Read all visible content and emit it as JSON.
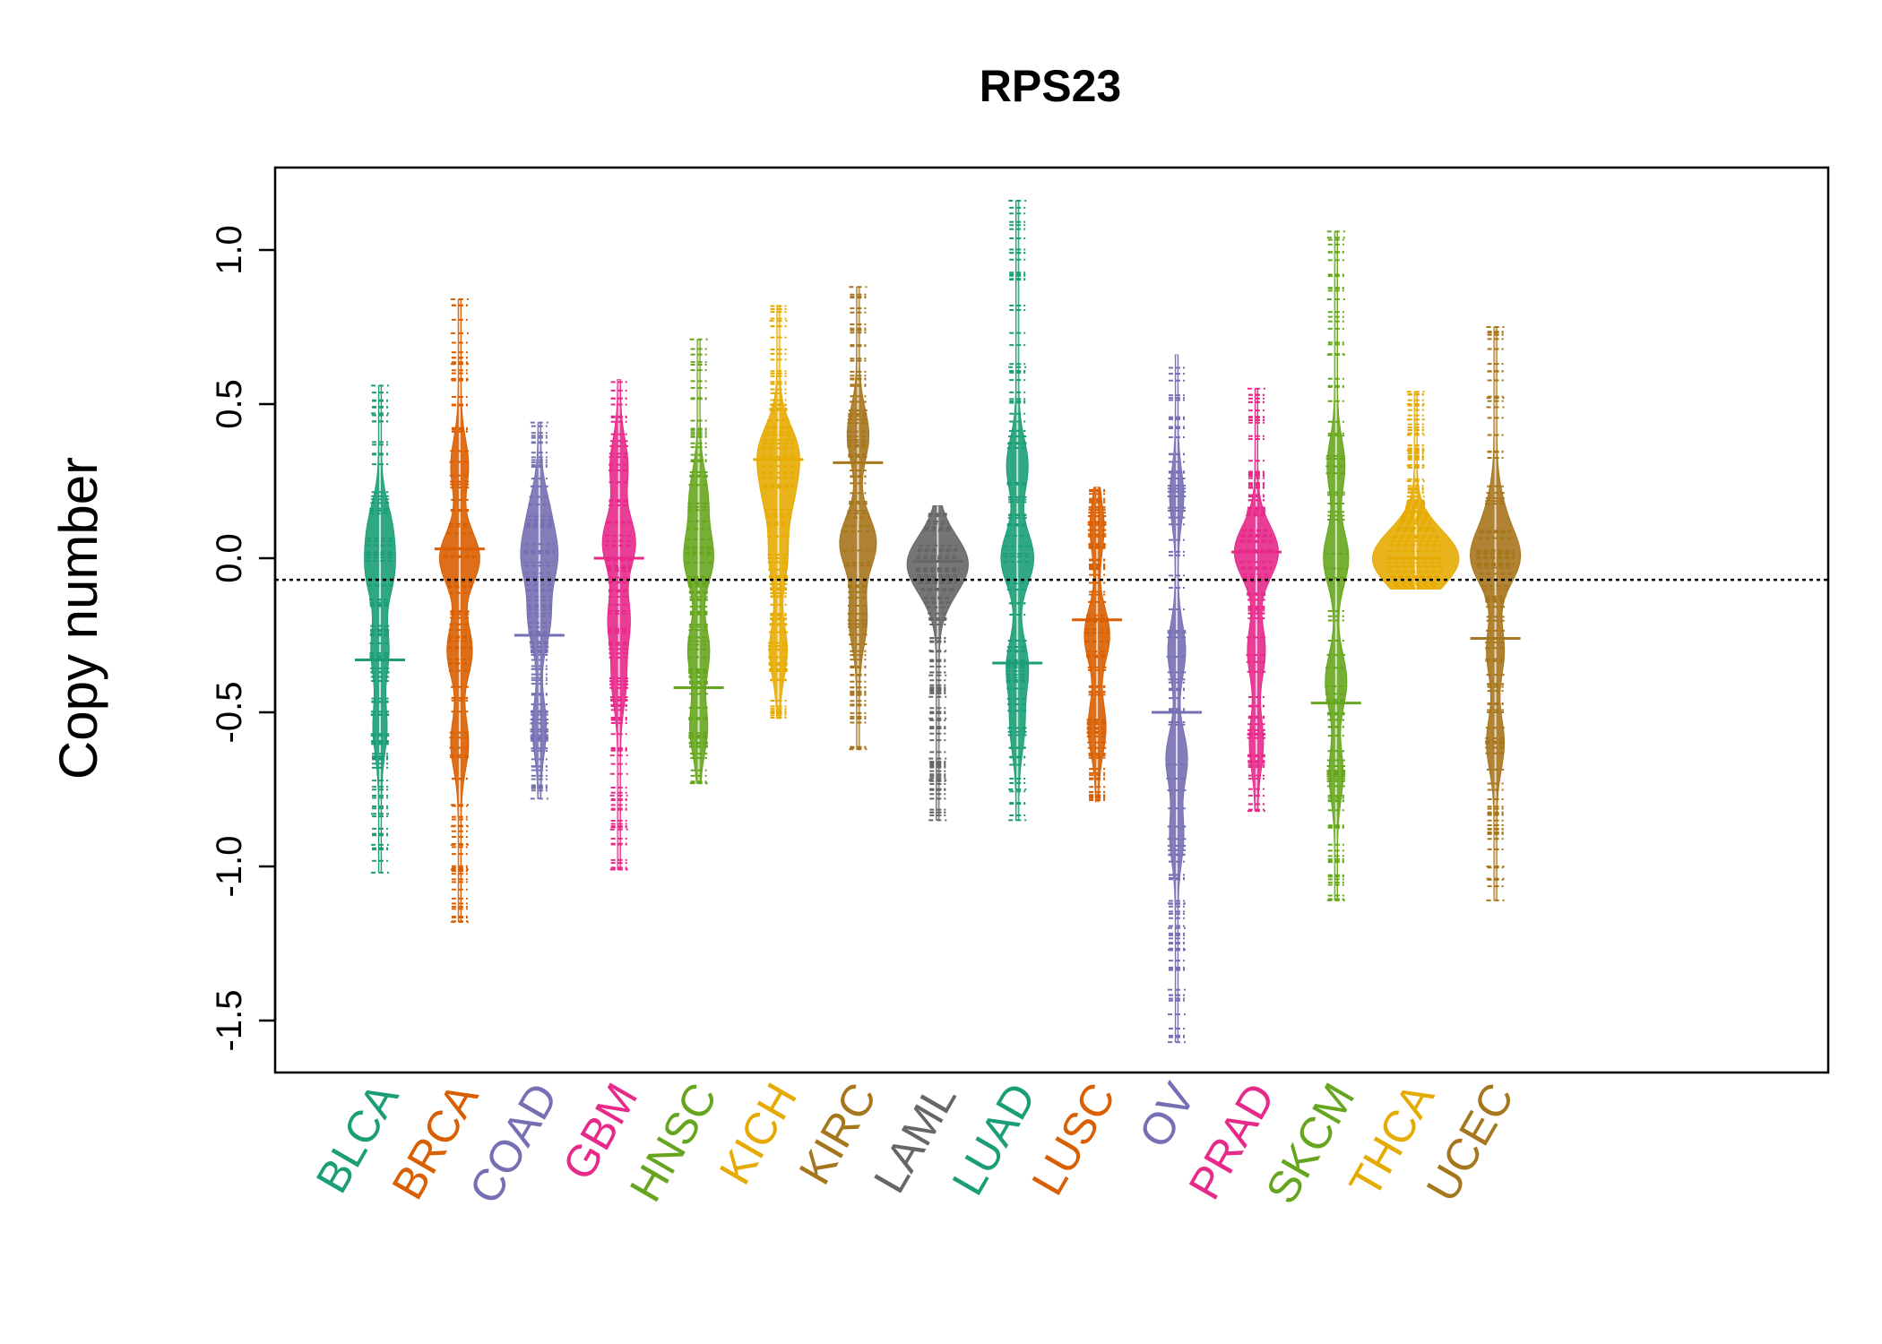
{
  "chart_data": {
    "type": "beanplot",
    "title": "RPS23",
    "xlabel": "",
    "ylabel": "Copy number",
    "ylim": [
      -1.68,
      1.26
    ],
    "yticks": [
      1.0,
      0.5,
      0.0,
      -0.5,
      -1.0,
      -1.5
    ],
    "ytick_labels": [
      "1.0",
      "0.5",
      "0.0",
      "-0.5",
      "-1.0",
      "-1.5"
    ],
    "reference_line": {
      "y": -0.07,
      "style": "dotted",
      "color": "#000000"
    },
    "grid": false,
    "legend": "none",
    "series": [
      {
        "name": "BLCA",
        "color": "#1B9E77",
        "min": -1.02,
        "max": 0.56,
        "median": -0.33,
        "outliers": [
          0.56,
          0.47,
          -0.83,
          -0.93,
          -1.02
        ],
        "bulges": [
          [
            0.1,
            0.5
          ],
          [
            -0.05,
            0.6
          ],
          [
            -0.3,
            0.4
          ],
          [
            -0.55,
            0.3
          ]
        ]
      },
      {
        "name": "BRCA",
        "color": "#D95F02",
        "min": -1.18,
        "max": 0.84,
        "median": 0.03,
        "outliers": [
          0.84,
          0.73,
          0.63,
          0.58,
          -0.8,
          -0.87,
          -0.93,
          -1.01,
          -1.18
        ],
        "bulges": [
          [
            0.3,
            0.4
          ],
          [
            0.0,
            1.0
          ],
          [
            -0.3,
            0.6
          ],
          [
            -0.6,
            0.4
          ]
        ]
      },
      {
        "name": "COAD",
        "color": "#7570B3",
        "min": -0.78,
        "max": 0.44,
        "median": -0.25,
        "outliers": [
          0.44,
          -0.78
        ],
        "bulges": [
          [
            0.15,
            0.4
          ],
          [
            0.0,
            0.8
          ],
          [
            -0.2,
            0.5
          ],
          [
            -0.55,
            0.3
          ]
        ]
      },
      {
        "name": "GBM",
        "color": "#E7298A",
        "min": -1.01,
        "max": 0.58,
        "median": 0.0,
        "outliers": [
          -0.64,
          -0.7,
          -0.77,
          -0.88,
          -1.01
        ],
        "bulges": [
          [
            0.3,
            0.4
          ],
          [
            0.05,
            0.8
          ],
          [
            -0.2,
            0.5
          ],
          [
            -0.4,
            0.3
          ]
        ]
      },
      {
        "name": "HNSC",
        "color": "#66A61E",
        "min": -0.73,
        "max": 0.71,
        "median": -0.42,
        "outliers": [
          0.71,
          -0.73
        ],
        "bulges": [
          [
            0.2,
            0.4
          ],
          [
            0.0,
            0.7
          ],
          [
            -0.3,
            0.5
          ],
          [
            -0.55,
            0.4
          ]
        ]
      },
      {
        "name": "KICH",
        "color": "#E6AB02",
        "min": -0.52,
        "max": 0.82,
        "median": 0.32,
        "outliers": [
          0.77
        ],
        "bulges": [
          [
            0.35,
            0.9
          ],
          [
            0.2,
            0.6
          ],
          [
            0.0,
            0.4
          ],
          [
            -0.3,
            0.4
          ]
        ]
      },
      {
        "name": "KIRC",
        "color": "#A6761D",
        "min": -0.62,
        "max": 0.88,
        "median": 0.31,
        "outliers": [
          0.88,
          -0.62
        ],
        "bulges": [
          [
            0.4,
            0.5
          ],
          [
            0.05,
            0.9
          ],
          [
            -0.2,
            0.4
          ]
        ]
      },
      {
        "name": "LAML",
        "color": "#666666",
        "min": -0.85,
        "max": 0.17,
        "median": -0.01,
        "outliers": [
          -0.3,
          -0.38,
          -0.45,
          -0.52,
          -0.65,
          -0.72,
          -0.85
        ],
        "bulges": [
          [
            0.0,
            1.2
          ],
          [
            -0.08,
            0.5
          ]
        ]
      },
      {
        "name": "LUAD",
        "color": "#1B9E77",
        "min": -0.85,
        "max": 1.16,
        "median": -0.34,
        "outliers": [
          1.16,
          0.62,
          -0.75,
          -0.85
        ],
        "bulges": [
          [
            0.3,
            0.5
          ],
          [
            0.0,
            0.8
          ],
          [
            -0.35,
            0.5
          ],
          [
            -0.55,
            0.3
          ]
        ]
      },
      {
        "name": "LUSC",
        "color": "#D95F02",
        "min": -0.79,
        "max": 0.23,
        "median": -0.2,
        "outliers": [],
        "bulges": [
          [
            0.1,
            0.3
          ],
          [
            -0.25,
            0.6
          ],
          [
            -0.55,
            0.4
          ]
        ]
      },
      {
        "name": "OV",
        "color": "#7570B3",
        "min": -1.57,
        "max": 0.66,
        "median": -0.5,
        "outliers": [
          -1.12,
          -1.2,
          -1.27,
          -1.4,
          -1.48,
          -1.57
        ],
        "bulges": [
          [
            0.2,
            0.3
          ],
          [
            -0.3,
            0.4
          ],
          [
            -0.65,
            0.5
          ],
          [
            -0.9,
            0.3
          ]
        ]
      },
      {
        "name": "PRAD",
        "color": "#E7298A",
        "min": -0.82,
        "max": 0.55,
        "median": 0.02,
        "outliers": [
          0.55,
          -0.82
        ],
        "bulges": [
          [
            0.02,
            1.1
          ],
          [
            -0.3,
            0.4
          ],
          [
            -0.6,
            0.3
          ]
        ]
      },
      {
        "name": "SKCM",
        "color": "#66A61E",
        "min": -1.11,
        "max": 1.06,
        "median": -0.47,
        "outliers": [
          1.06,
          1.04,
          0.84,
          0.66,
          -1.11
        ],
        "bulges": [
          [
            0.3,
            0.4
          ],
          [
            0.0,
            0.6
          ],
          [
            -0.4,
            0.5
          ],
          [
            -0.7,
            0.3
          ]
        ]
      },
      {
        "name": "THCA",
        "color": "#E6AB02",
        "min": -0.1,
        "max": 0.54,
        "median": 0.0,
        "outliers": [
          0.54,
          0.5,
          0.45,
          0.4,
          0.35,
          0.3,
          0.25,
          0.2,
          0.15
        ],
        "bulges": [
          [
            0.02,
            1.6
          ],
          [
            -0.05,
            0.8
          ]
        ]
      },
      {
        "name": "UCEC",
        "color": "#A6761D",
        "min": -1.11,
        "max": 0.75,
        "median": -0.26,
        "outliers": [
          0.75,
          0.52,
          0.49,
          -1.0,
          -1.04,
          -1.11
        ],
        "bulges": [
          [
            0.15,
            0.3
          ],
          [
            0.0,
            1.2
          ],
          [
            -0.3,
            0.4
          ],
          [
            -0.6,
            0.4
          ]
        ]
      }
    ]
  }
}
